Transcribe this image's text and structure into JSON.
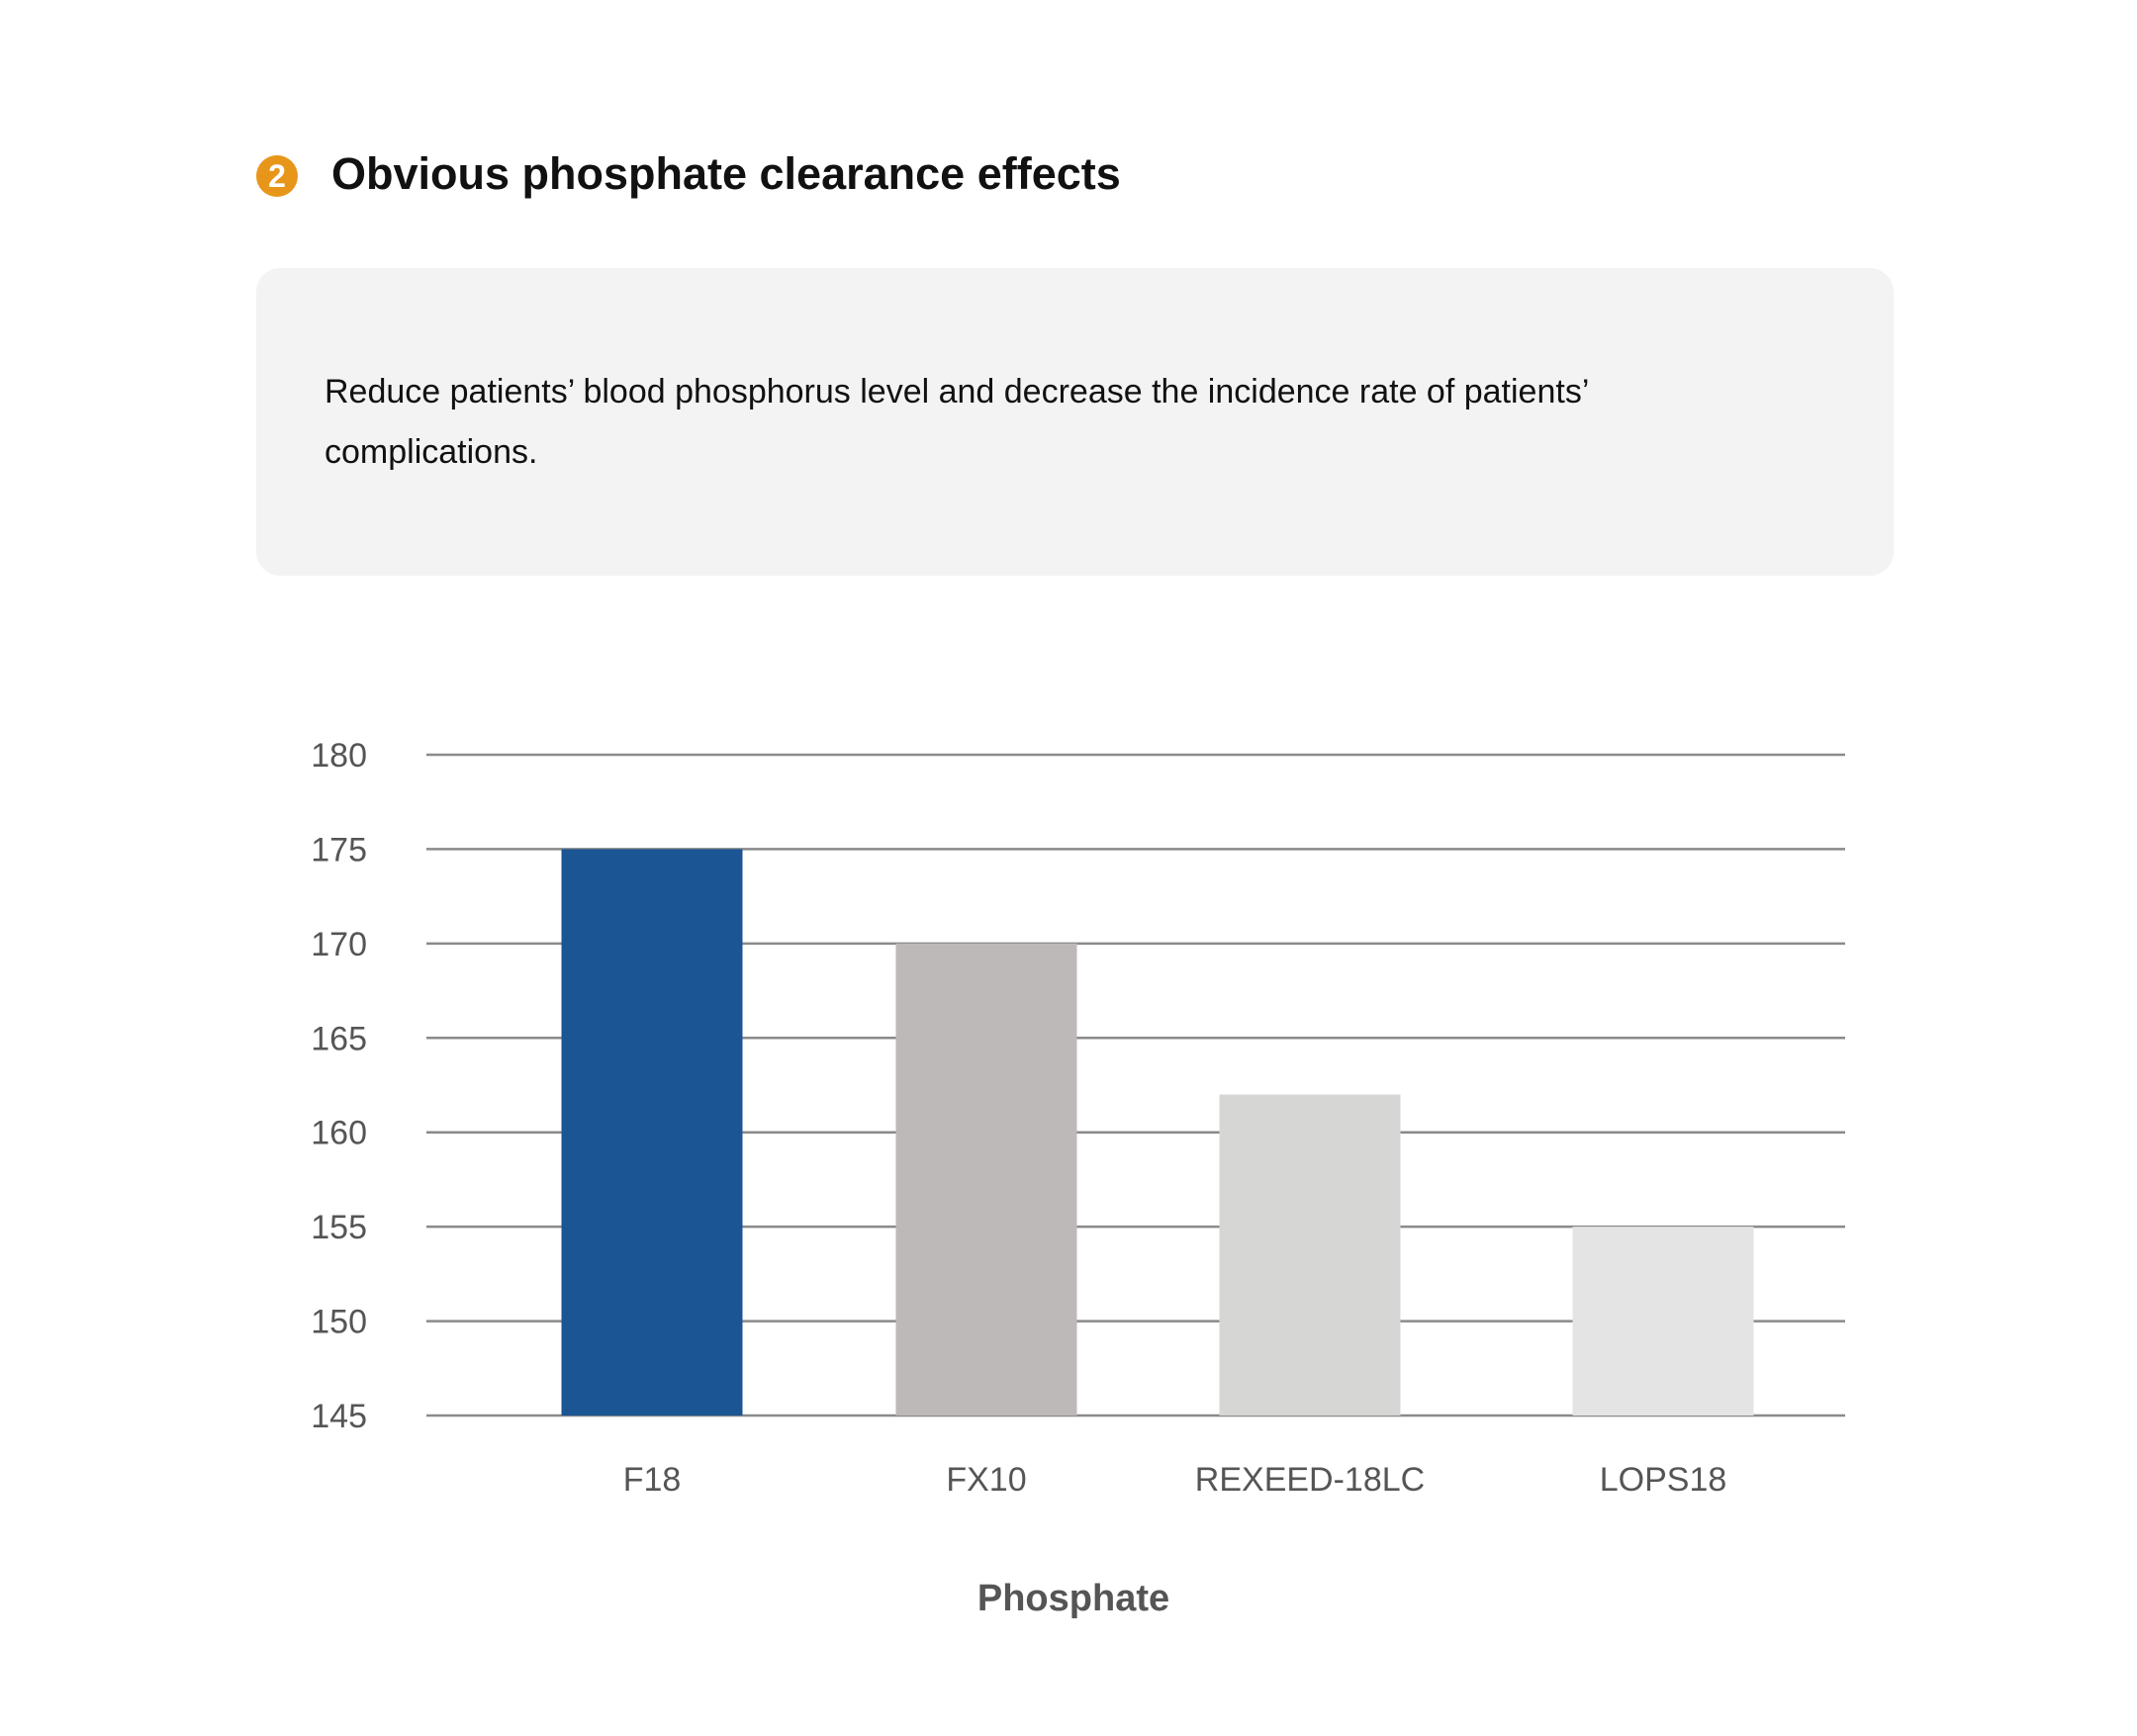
{
  "section": {
    "badge": "2",
    "title": "Obvious phosphate clearance effects",
    "description": "Reduce patients’ blood phosphorus level and decrease the incidence rate of patients’ complications."
  },
  "chart_data": {
    "type": "bar",
    "title": "",
    "xlabel": "Phosphate",
    "ylabel": "",
    "categories": [
      "F18",
      "FX10",
      "REXEED-18LC",
      "LOPS18"
    ],
    "values": [
      175,
      170,
      162,
      155
    ],
    "colors": [
      "#1b5593",
      "#bcb9b8",
      "#d6d7d5",
      "#e4e4e4"
    ],
    "ylim": [
      145,
      180
    ],
    "yticks": [
      180,
      175,
      170,
      165,
      160,
      155,
      150,
      145
    ],
    "grid": true,
    "gridline_color": "#8a8a8a"
  }
}
